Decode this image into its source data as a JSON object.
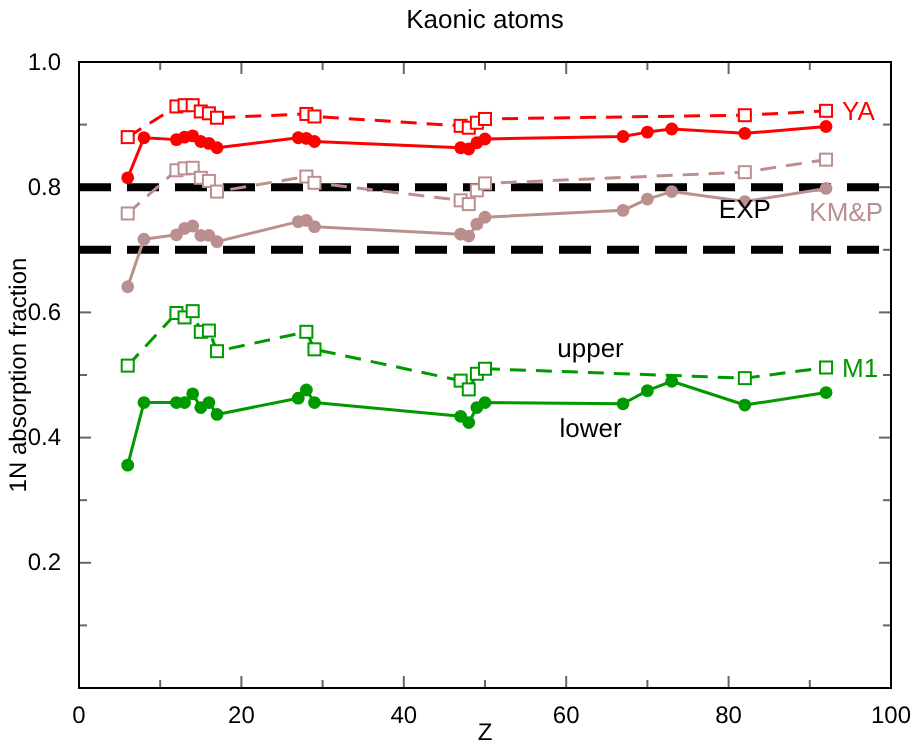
{
  "chart_data": {
    "type": "line",
    "title": "Kaonic atoms",
    "xlabel": "Z",
    "ylabel": "1N absorption fraction",
    "xlim": [
      0,
      100
    ],
    "xticks": [
      0,
      20,
      40,
      60,
      80,
      100
    ],
    "ylim": [
      0,
      1
    ],
    "yticks": [
      {
        "value": 0,
        "label": null
      },
      0.2,
      0.4,
      0.6,
      0.8,
      {
        "value": 1,
        "label": "1.0"
      }
    ],
    "grid": false,
    "series": [
      {
        "color": "#ff0000",
        "marker": "circle",
        "line_style": "solid",
        "x": [
          6,
          8,
          12,
          13,
          14,
          15,
          16,
          17,
          27,
          28,
          29,
          47,
          48,
          49,
          50,
          67,
          70,
          73,
          82,
          92
        ],
        "values": [
          0.815,
          0.879,
          0.876,
          0.88,
          0.882,
          0.873,
          0.87,
          0.863,
          0.879,
          0.878,
          0.873,
          0.863,
          0.861,
          0.871,
          0.877,
          0.881,
          0.888,
          0.893,
          0.886,
          0.897
        ]
      },
      {
        "name": "YA",
        "color": "#ff0000",
        "marker": "square",
        "line_style": "dashed",
        "x": [
          6,
          12,
          13,
          14,
          15,
          16,
          17,
          28,
          29,
          47,
          48,
          49,
          50,
          82,
          92
        ],
        "values": [
          0.88,
          0.929,
          0.931,
          0.931,
          0.921,
          0.918,
          0.911,
          0.917,
          0.913,
          0.898,
          0.895,
          0.903,
          0.909,
          0.915,
          0.922
        ]
      },
      {
        "color": "#bc8f8f",
        "marker": "circle",
        "line_style": "solid",
        "x": [
          6,
          8,
          12,
          13,
          14,
          15,
          16,
          17,
          27,
          28,
          29,
          47,
          48,
          49,
          50,
          67,
          70,
          73,
          82,
          92
        ],
        "values": [
          0.641,
          0.717,
          0.724,
          0.734,
          0.738,
          0.723,
          0.723,
          0.713,
          0.745,
          0.747,
          0.737,
          0.725,
          0.722,
          0.741,
          0.752,
          0.763,
          0.781,
          0.793,
          0.777,
          0.798
        ]
      },
      {
        "name": "KM&P",
        "color": "#bc8f8f",
        "marker": "square",
        "line_style": "dashed",
        "x": [
          6,
          12,
          13,
          14,
          15,
          16,
          17,
          28,
          29,
          47,
          48,
          49,
          50,
          82,
          92
        ],
        "values": [
          0.758,
          0.827,
          0.83,
          0.831,
          0.815,
          0.81,
          0.793,
          0.817,
          0.807,
          0.779,
          0.773,
          0.795,
          0.806,
          0.824,
          0.844
        ]
      },
      {
        "color": "#009900",
        "marker": "circle",
        "line_style": "solid",
        "x": [
          6,
          8,
          12,
          13,
          14,
          15,
          16,
          17,
          27,
          28,
          29,
          47,
          48,
          49,
          50,
          67,
          70,
          73,
          82,
          92
        ],
        "values": [
          0.356,
          0.456,
          0.456,
          0.456,
          0.47,
          0.448,
          0.456,
          0.437,
          0.463,
          0.476,
          0.456,
          0.434,
          0.424,
          0.448,
          0.456,
          0.454,
          0.475,
          0.49,
          0.452,
          0.472
        ]
      },
      {
        "name": "M1",
        "color": "#009900",
        "marker": "square",
        "line_style": "dashed",
        "x": [
          6,
          12,
          13,
          14,
          15,
          16,
          17,
          28,
          29,
          47,
          48,
          49,
          50,
          82,
          92
        ],
        "values": [
          0.515,
          0.599,
          0.592,
          0.602,
          0.569,
          0.571,
          0.538,
          0.569,
          0.541,
          0.491,
          0.477,
          0.502,
          0.51,
          0.495,
          0.512
        ]
      }
    ],
    "ref_lines": [
      {
        "axis": "y",
        "value": 0.8,
        "color": "#000000",
        "line_style": "dashed"
      },
      {
        "axis": "y",
        "value": 0.7,
        "color": "#000000",
        "line_style": "dashed"
      }
    ],
    "annotations": [
      "EXP",
      "upper",
      "lower"
    ]
  }
}
